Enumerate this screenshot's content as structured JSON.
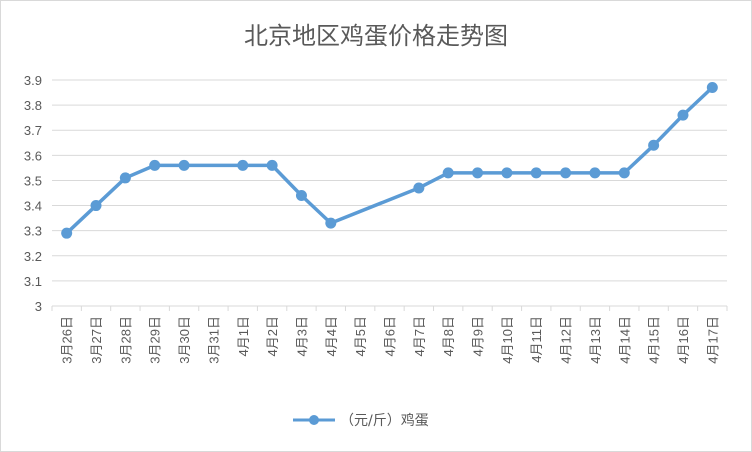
{
  "chart_data": {
    "type": "line",
    "title": "北京地区鸡蛋价格走势图",
    "xlabel": "",
    "ylabel": "",
    "categories": [
      "3月26日",
      "3月27日",
      "3月28日",
      "3月29日",
      "3月30日",
      "3月31日",
      "4月1日",
      "4月2日",
      "4月3日",
      "4月4日",
      "4月5日",
      "4月6日",
      "4月7日",
      "4月8日",
      "4月9日",
      "4月10日",
      "4月11日",
      "4月12日",
      "4月13日",
      "4月14日",
      "4月15日",
      "4月16日",
      "4月17日"
    ],
    "series": [
      {
        "name": "（元/斤）鸡蛋",
        "values": [
          3.29,
          3.4,
          3.51,
          3.56,
          3.56,
          null,
          3.56,
          3.56,
          3.44,
          3.33,
          null,
          null,
          3.47,
          3.53,
          3.53,
          3.53,
          3.53,
          3.53,
          3.53,
          3.53,
          3.64,
          3.76,
          3.87
        ]
      }
    ],
    "yticks": [
      "3",
      "3.1",
      "3.2",
      "3.3",
      "3.4",
      "3.5",
      "3.6",
      "3.7",
      "3.8",
      "3.9"
    ],
    "ylim": [
      3,
      3.9
    ],
    "grid": true,
    "legend_position": "bottom",
    "colors": {
      "series": "#5b9bd5",
      "grid": "#d9d9d9",
      "text": "#595959"
    }
  }
}
